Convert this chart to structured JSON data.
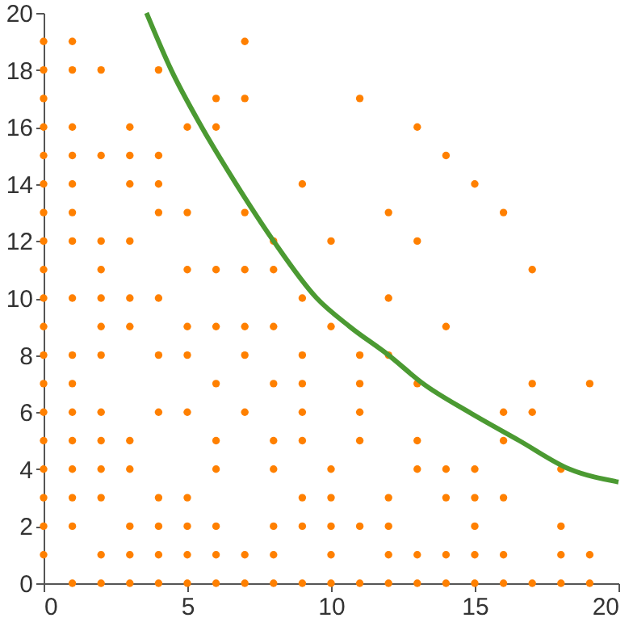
{
  "chart_data": {
    "type": "scatter",
    "xlim": [
      0,
      20
    ],
    "ylim": [
      0,
      20
    ],
    "xticks": [
      0,
      5,
      10,
      15,
      20
    ],
    "yticks": [
      0,
      2,
      4,
      6,
      8,
      10,
      12,
      14,
      16,
      18,
      20
    ],
    "grid": false,
    "series": [
      {
        "marker": "circle",
        "color": "#ff8000",
        "x": [
          0,
          1,
          7,
          0,
          1,
          2,
          4,
          0,
          6,
          7,
          11,
          0,
          1,
          3,
          5,
          6,
          13,
          0,
          1,
          2,
          3,
          4,
          14,
          0,
          1,
          3,
          4,
          9,
          15,
          0,
          1,
          4,
          5,
          7,
          12,
          16,
          0,
          1,
          2,
          3,
          8,
          10,
          13,
          0,
          2,
          5,
          6,
          7,
          8,
          17,
          0,
          1,
          2,
          3,
          4,
          9,
          12,
          0,
          2,
          3,
          5,
          6,
          7,
          8,
          10,
          14,
          0,
          1,
          2,
          4,
          5,
          7,
          9,
          11,
          12,
          0,
          1,
          6,
          8,
          9,
          11,
          13,
          17,
          19,
          0,
          1,
          2,
          4,
          5,
          7,
          9,
          11,
          16,
          17,
          0,
          1,
          2,
          3,
          6,
          8,
          9,
          11,
          13,
          16,
          0,
          1,
          2,
          3,
          6,
          8,
          10,
          13,
          14,
          15,
          18,
          0,
          1,
          2,
          4,
          5,
          9,
          10,
          12,
          14,
          15,
          16,
          0,
          1,
          3,
          4,
          5,
          6,
          8,
          9,
          10,
          11,
          12,
          15,
          18,
          0,
          2,
          3,
          4,
          5,
          6,
          7,
          8,
          10,
          12,
          13,
          14,
          15,
          16,
          18,
          19,
          1,
          2,
          3,
          4,
          5,
          6,
          7,
          8,
          9,
          10,
          11,
          12,
          13,
          14,
          15,
          16,
          17,
          18,
          19
        ],
        "values": [
          19,
          19,
          19,
          18,
          18,
          18,
          18,
          17,
          17,
          17,
          17,
          16,
          16,
          16,
          16,
          16,
          16,
          15,
          15,
          15,
          15,
          15,
          15,
          14,
          14,
          14,
          14,
          14,
          14,
          13,
          13,
          13,
          13,
          13,
          13,
          13,
          12,
          12,
          12,
          12,
          12,
          12,
          12,
          11,
          11,
          11,
          11,
          11,
          11,
          11,
          10,
          10,
          10,
          10,
          10,
          10,
          10,
          9,
          9,
          9,
          9,
          9,
          9,
          9,
          9,
          9,
          8,
          8,
          8,
          8,
          8,
          8,
          8,
          8,
          8,
          7,
          7,
          7,
          7,
          7,
          7,
          7,
          7,
          7,
          6,
          6,
          6,
          6,
          6,
          6,
          6,
          6,
          6,
          6,
          5,
          5,
          5,
          5,
          5,
          5,
          5,
          5,
          5,
          5,
          4,
          4,
          4,
          4,
          4,
          4,
          4,
          4,
          4,
          4,
          4,
          3,
          3,
          3,
          3,
          3,
          3,
          3,
          3,
          3,
          3,
          3,
          2,
          2,
          2,
          2,
          2,
          2,
          2,
          2,
          2,
          2,
          2,
          2,
          2,
          1,
          1,
          1,
          1,
          1,
          1,
          1,
          1,
          1,
          1,
          1,
          1,
          1,
          1,
          1,
          1,
          0,
          0,
          0,
          0,
          0,
          0,
          0,
          0,
          0,
          0,
          0,
          0,
          0,
          0,
          0,
          0,
          0,
          0,
          0
        ]
      },
      {
        "type": "line",
        "color": "#4b9a32",
        "line_style": "solid",
        "x": [
          3.58,
          4.44,
          5.5,
          6.7,
          8,
          9.5,
          10.65,
          12,
          13.2,
          14.8,
          16.55,
          18.3,
          20
        ],
        "values": [
          20,
          18,
          16,
          14,
          12,
          10,
          9,
          8,
          7,
          6,
          5,
          4,
          3.55
        ]
      }
    ]
  }
}
